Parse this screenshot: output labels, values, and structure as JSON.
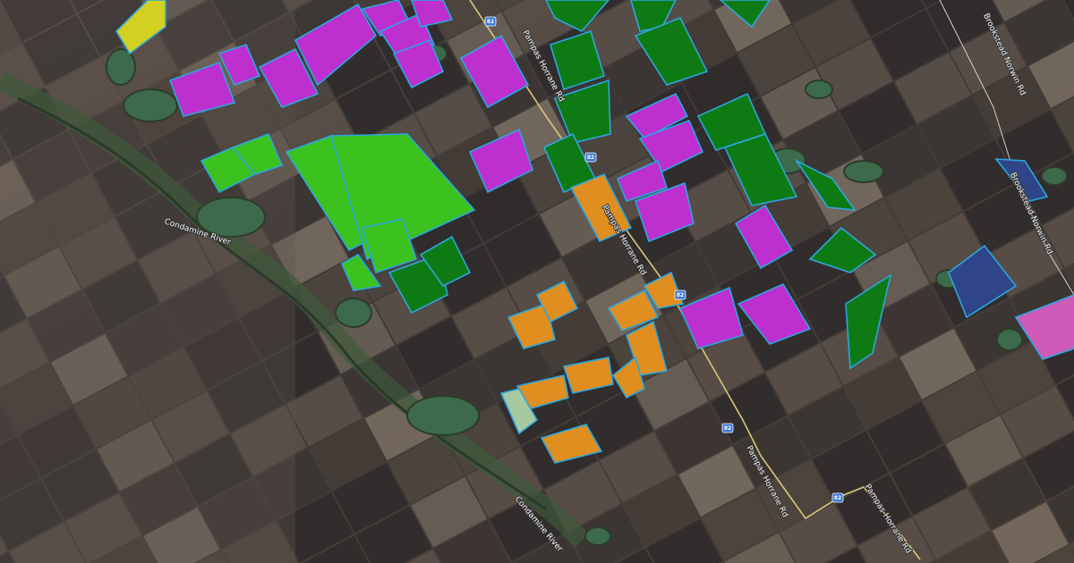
{
  "map": {
    "view": "satellite",
    "roads": [
      {
        "label": "Pampas Horrane Rd"
      },
      {
        "label": "Pampas Horrane Rd"
      },
      {
        "label": "Pampas Horrane Rd"
      },
      {
        "label": "Pampas Horrane Rd"
      },
      {
        "label": "Brookstead Norwin Rd"
      },
      {
        "label": "Brookstead Norwin Rd"
      },
      {
        "label": "Condamine River"
      },
      {
        "label": "Condamine River"
      }
    ],
    "route_shields": [
      "82",
      "82",
      "82",
      "82",
      "82"
    ],
    "field_colors": {
      "magenta": "#bd2fcf",
      "lime": "#3cc21f",
      "dark_green": "#0e7a14",
      "orange": "#e08e1f",
      "yellow": "#d2d020",
      "navy": "#2f4588",
      "pink": "#d05ab8",
      "pale_green": "#a7c9a0",
      "outline": "#2aa7e0"
    }
  }
}
